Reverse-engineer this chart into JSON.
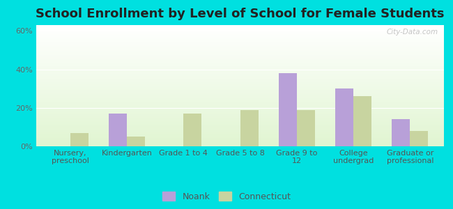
{
  "title": "School Enrollment by Level of School for Female Students",
  "categories": [
    "Nursery,\npreschool",
    "Kindergarten",
    "Grade 1 to 4",
    "Grade 5 to 8",
    "Grade 9 to\n12",
    "College\nundergrad",
    "Graduate or\nprofessional"
  ],
  "noank_values": [
    0,
    17,
    0,
    0,
    38,
    30,
    14
  ],
  "connecticut_values": [
    7,
    5,
    17,
    19,
    19,
    26,
    8
  ],
  "noank_color": "#b8a0d8",
  "connecticut_color": "#c8d4a0",
  "bar_width": 0.32,
  "ylim": [
    0,
    63
  ],
  "yticks": [
    0,
    20,
    40,
    60
  ],
  "ytick_labels": [
    "0%",
    "20%",
    "40%",
    "60%"
  ],
  "background_color": "#00e0e0",
  "title_fontsize": 13,
  "tick_fontsize": 8,
  "legend_labels": [
    "Noank",
    "Connecticut"
  ],
  "watermark": "City-Data.com"
}
